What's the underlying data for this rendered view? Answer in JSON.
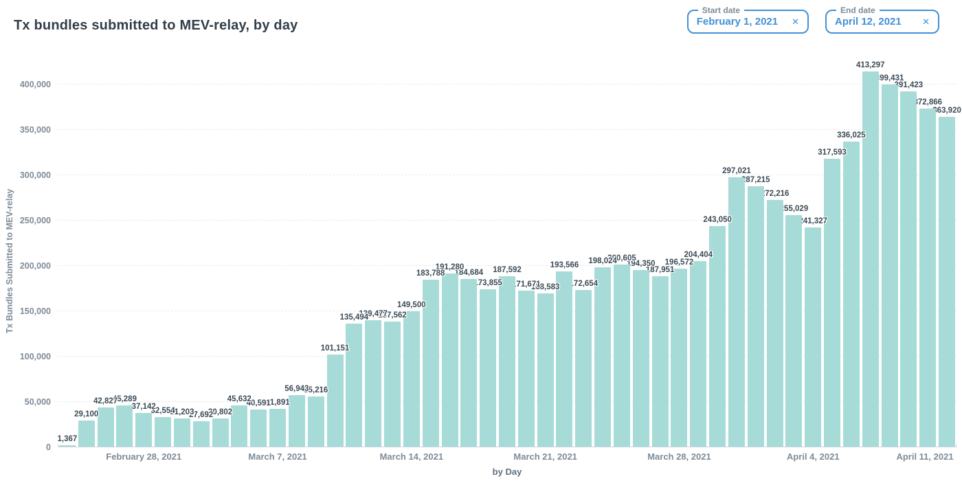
{
  "page_title": "Tx bundles submitted to MEV-relay, by day",
  "filters": {
    "start": {
      "label": "Start date",
      "value": "February 1, 2021",
      "clear_icon": "✕"
    },
    "end": {
      "label": "End date",
      "value": "April 12, 2021",
      "clear_icon": "✕"
    }
  },
  "chart_data": {
    "type": "bar",
    "title": "Tx bundles submitted to MEV-relay, by day",
    "xlabel": "by Day",
    "ylabel": "Tx Bundles Submitted to MEV-relay",
    "ylim": [
      0,
      400000
    ],
    "y_tick_step": 50000,
    "y_tick_labels": [
      "0",
      "50,000",
      "100,000",
      "150,000",
      "200,000",
      "250,000",
      "300,000",
      "350,000",
      "400,000"
    ],
    "grid": true,
    "legend_position": "none",
    "bar_color": "#a6dbd8",
    "value_labels_shown": true,
    "values": [
      1367,
      29100,
      42827,
      45289,
      37142,
      32554,
      31203,
      27692,
      30802,
      45632,
      40591,
      41891,
      56943,
      55216,
      101151,
      135494,
      139477,
      137562,
      149500,
      183788,
      191280,
      184684,
      173855,
      187592,
      171671,
      168583,
      193566,
      172654,
      198024,
      200605,
      194350,
      187951,
      196572,
      204404,
      243050,
      297021,
      287215,
      272216,
      255029,
      241327,
      317593,
      336025,
      413297,
      399431,
      391423,
      372866,
      363920
    ],
    "x_ticks": [
      {
        "index": 4,
        "label": "February 28, 2021"
      },
      {
        "index": 11,
        "label": "March 7, 2021"
      },
      {
        "index": 18,
        "label": "March 14, 2021"
      },
      {
        "index": 25,
        "label": "March 21, 2021"
      },
      {
        "index": 32,
        "label": "March 28, 2021"
      },
      {
        "index": 39,
        "label": "April 4, 2021"
      },
      {
        "index": 46,
        "label": "April 11, 2021"
      }
    ]
  }
}
